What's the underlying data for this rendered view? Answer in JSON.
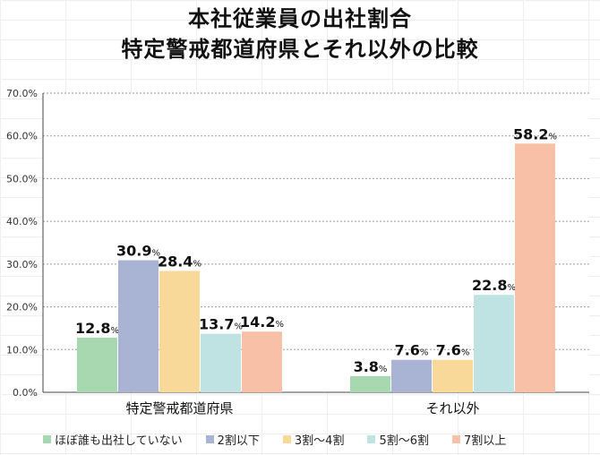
{
  "title_line1": "本社従業員の出社割合",
  "title_line2": "特定警戒都道府県とそれ以外の比較",
  "chart_data": {
    "type": "bar",
    "categories": [
      "特定警戒都道府県",
      "それ以外"
    ],
    "series": [
      {
        "name": "ほぼ誰も出社していない",
        "color": "#a7d8b0",
        "values": [
          12.8,
          3.8
        ]
      },
      {
        "name": "2割以下",
        "color": "#a9b4d4",
        "values": [
          30.9,
          7.6
        ]
      },
      {
        "name": "3割〜4割",
        "color": "#f8d99a",
        "values": [
          28.4,
          7.6
        ]
      },
      {
        "name": "5割〜6割",
        "color": "#bfe3e3",
        "values": [
          13.7,
          22.8
        ]
      },
      {
        "name": "7割以上",
        "color": "#f8c0a6",
        "values": [
          14.2,
          58.2
        ]
      }
    ],
    "value_labels": [
      [
        "12.8%",
        "3.8%"
      ],
      [
        "30.9%",
        "7.6%"
      ],
      [
        "28.4%",
        "7.6%"
      ],
      [
        "13.7%",
        "22.8%"
      ],
      [
        "14.2%",
        "58.2%"
      ]
    ],
    "ylim": [
      0,
      70
    ],
    "yticks": [
      "0.0%",
      "10.0%",
      "20.0%",
      "30.0%",
      "40.0%",
      "50.0%",
      "60.0%",
      "70.0%"
    ],
    "ytick_values": [
      0,
      10,
      20,
      30,
      40,
      50,
      60,
      70
    ],
    "grid": true,
    "legend_position": "bottom"
  }
}
